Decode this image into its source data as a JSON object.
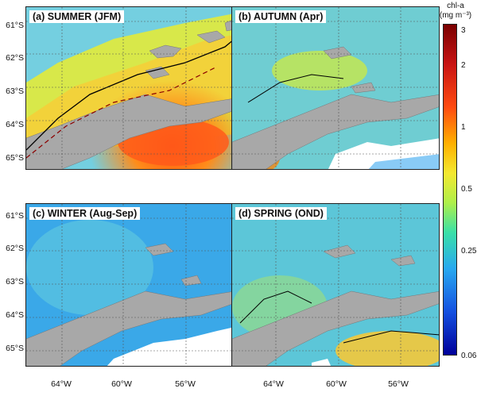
{
  "colorbar": {
    "title_line1": "chl-a",
    "title_line2": "(mg m⁻³)",
    "ticks": [
      "3",
      "2",
      "1",
      "0.5",
      "0.25",
      "0.06"
    ]
  },
  "latitude_labels": [
    "61°S",
    "62°S",
    "63°S",
    "64°S",
    "65°S"
  ],
  "longitude_labels": [
    "64°W",
    "60°W",
    "56°W"
  ],
  "panels": [
    {
      "label": "(a) SUMMER (JFM)"
    },
    {
      "label": "(b) AUTUMN (Apr)"
    },
    {
      "label": "(c) WINTER (Aug-Sep)"
    },
    {
      "label": "(d) SPRING (OND)"
    }
  ],
  "colors": {
    "land": "#a8a8a8",
    "no_data": "#ffffff",
    "contour": "#000000",
    "graticule": "#555555"
  }
}
